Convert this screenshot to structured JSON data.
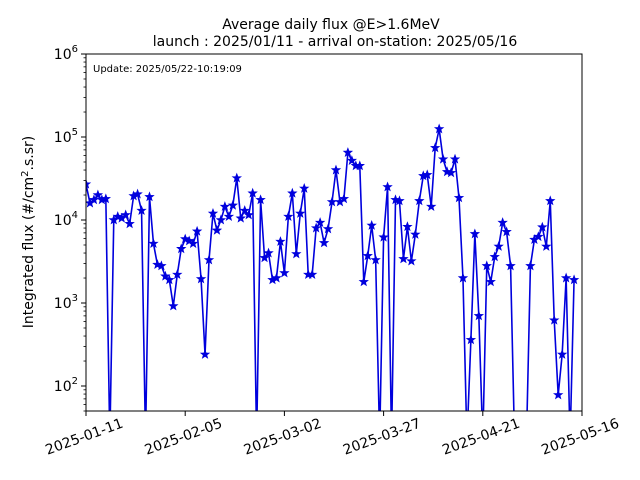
{
  "chart_data": {
    "type": "line",
    "title_line1": "Average daily flux @E>1.6MeV",
    "title_line2": "launch : 2025/01/11 - arrival on-station: 2025/05/16",
    "update_text": "Update: 2025/05/22-10:19:09",
    "ylabel_main": "Integrated flux (#/cm",
    "ylabel_sup": "2",
    "ylabel_tail": ".s.sr)",
    "xlabel": "",
    "x_ticks": [
      "2025-01-11",
      "2025-02-05",
      "2025-03-02",
      "2025-03-27",
      "2025-04-21",
      "2025-05-16"
    ],
    "y_scale": "log",
    "ylim": [
      50,
      1000000
    ],
    "xlim": [
      "2025-01-11",
      "2025-05-16"
    ],
    "y_ticks": [
      {
        "value": 100,
        "base": "10",
        "exp": "2"
      },
      {
        "value": 1000,
        "base": "10",
        "exp": "3"
      },
      {
        "value": 10000,
        "base": "10",
        "exp": "4"
      },
      {
        "value": 100000,
        "base": "10",
        "exp": "5"
      },
      {
        "value": 1000000,
        "base": "10",
        "exp": "6"
      }
    ],
    "grid": false,
    "color": "#0000dd",
    "marker": "star",
    "series": [
      {
        "name": "",
        "points": [
          [
            "2025-01-11",
            27000
          ],
          [
            "2025-01-12",
            16000
          ],
          [
            "2025-01-13",
            17500
          ],
          [
            "2025-01-14",
            20000
          ],
          [
            "2025-01-15",
            17500
          ],
          [
            "2025-01-16",
            18000
          ],
          [
            "2025-01-17",
            null
          ],
          [
            "2025-01-18",
            10000
          ],
          [
            "2025-01-19",
            11000
          ],
          [
            "2025-01-20",
            10500
          ],
          [
            "2025-01-21",
            11500
          ],
          [
            "2025-01-22",
            9000
          ],
          [
            "2025-01-23",
            19500
          ],
          [
            "2025-01-24",
            20500
          ],
          [
            "2025-01-25",
            13000
          ],
          [
            "2025-01-26",
            null
          ],
          [
            "2025-01-27",
            19000
          ],
          [
            "2025-01-28",
            5200
          ],
          [
            "2025-01-29",
            2900
          ],
          [
            "2025-01-30",
            2800
          ],
          [
            "2025-01-31",
            2100
          ],
          [
            "2025-02-01",
            1900
          ],
          [
            "2025-02-02",
            920
          ],
          [
            "2025-02-03",
            2200
          ],
          [
            "2025-02-04",
            4500
          ],
          [
            "2025-02-05",
            5900
          ],
          [
            "2025-02-06",
            5600
          ],
          [
            "2025-02-07",
            5200
          ],
          [
            "2025-02-08",
            7300
          ],
          [
            "2025-02-09",
            1950
          ],
          [
            "2025-02-10",
            240
          ],
          [
            "2025-02-11",
            3300
          ],
          [
            "2025-02-12",
            12000
          ],
          [
            "2025-02-13",
            7500
          ],
          [
            "2025-02-14",
            10000
          ],
          [
            "2025-02-15",
            14500
          ],
          [
            "2025-02-16",
            11000
          ],
          [
            "2025-02-17",
            15000
          ],
          [
            "2025-02-18",
            32000
          ],
          [
            "2025-02-19",
            10500
          ],
          [
            "2025-02-20",
            13000
          ],
          [
            "2025-02-21",
            11500
          ],
          [
            "2025-02-22",
            21000
          ],
          [
            "2025-02-23",
            null
          ],
          [
            "2025-02-24",
            17500
          ],
          [
            "2025-02-25",
            3500
          ],
          [
            "2025-02-26",
            4000
          ],
          [
            "2025-02-27",
            1900
          ],
          [
            "2025-02-28",
            2000
          ],
          [
            "2025-03-01",
            5500
          ],
          [
            "2025-03-02",
            2300
          ],
          [
            "2025-03-03",
            11000
          ],
          [
            "2025-03-04",
            21000
          ],
          [
            "2025-03-05",
            3900
          ],
          [
            "2025-03-06",
            12000
          ],
          [
            "2025-03-07",
            24000
          ],
          [
            "2025-03-08",
            2200
          ],
          [
            "2025-03-09",
            2200
          ],
          [
            "2025-03-10",
            8000
          ],
          [
            "2025-03-11",
            9300
          ],
          [
            "2025-03-12",
            5300
          ],
          [
            "2025-03-13",
            7800
          ],
          [
            "2025-03-14",
            16500
          ],
          [
            "2025-03-15",
            40000
          ],
          [
            "2025-03-16",
            16500
          ],
          [
            "2025-03-17",
            18000
          ],
          [
            "2025-03-18",
            65000
          ],
          [
            "2025-03-19",
            52000
          ],
          [
            "2025-03-20",
            45000
          ],
          [
            "2025-03-21",
            45000
          ],
          [
            "2025-03-22",
            1800
          ],
          [
            "2025-03-23",
            3700
          ],
          [
            "2025-03-24",
            8600
          ],
          [
            "2025-03-25",
            3300
          ],
          [
            "2025-03-26",
            null
          ],
          [
            "2025-03-27",
            6200
          ],
          [
            "2025-03-28",
            25000
          ],
          [
            "2025-03-29",
            null
          ],
          [
            "2025-03-30",
            17500
          ],
          [
            "2025-03-31",
            17000
          ],
          [
            "2025-04-01",
            3400
          ],
          [
            "2025-04-02",
            8300
          ],
          [
            "2025-04-03",
            3200
          ],
          [
            "2025-04-04",
            6700
          ],
          [
            "2025-04-05",
            17000
          ],
          [
            "2025-04-06",
            34000
          ],
          [
            "2025-04-07",
            35000
          ],
          [
            "2025-04-08",
            14500
          ],
          [
            "2025-04-09",
            74000
          ],
          [
            "2025-04-10",
            125000
          ],
          [
            "2025-04-11",
            54000
          ],
          [
            "2025-04-12",
            38000
          ],
          [
            "2025-04-13",
            37000
          ],
          [
            "2025-04-14",
            54000
          ],
          [
            "2025-04-15",
            18500
          ],
          [
            "2025-04-16",
            2000
          ],
          [
            "2025-04-17",
            null
          ],
          [
            "2025-04-18",
            360
          ],
          [
            "2025-04-19",
            6800
          ],
          [
            "2025-04-20",
            700
          ],
          [
            "2025-04-21",
            null
          ],
          [
            "2025-04-22",
            2800
          ],
          [
            "2025-04-23",
            1800
          ],
          [
            "2025-04-24",
            3600
          ],
          [
            "2025-04-25",
            4800
          ],
          [
            "2025-04-26",
            9300
          ],
          [
            "2025-04-27",
            7200
          ],
          [
            "2025-04-28",
            2800
          ],
          [
            "2025-04-29",
            null
          ],
          [
            "2025-04-30",
            null
          ],
          [
            "2025-05-01",
            null
          ],
          [
            "2025-05-02",
            null
          ],
          [
            "2025-05-03",
            2800
          ],
          [
            "2025-05-04",
            5800
          ],
          [
            "2025-05-05",
            6300
          ],
          [
            "2025-05-06",
            8200
          ],
          [
            "2025-05-07",
            4800
          ],
          [
            "2025-05-08",
            17000
          ],
          [
            "2025-05-09",
            620
          ],
          [
            "2025-05-10",
            78
          ],
          [
            "2025-05-11",
            240
          ],
          [
            "2025-05-12",
            2000
          ],
          [
            "2025-05-13",
            null
          ],
          [
            "2025-05-14",
            1900
          ]
        ]
      }
    ]
  }
}
